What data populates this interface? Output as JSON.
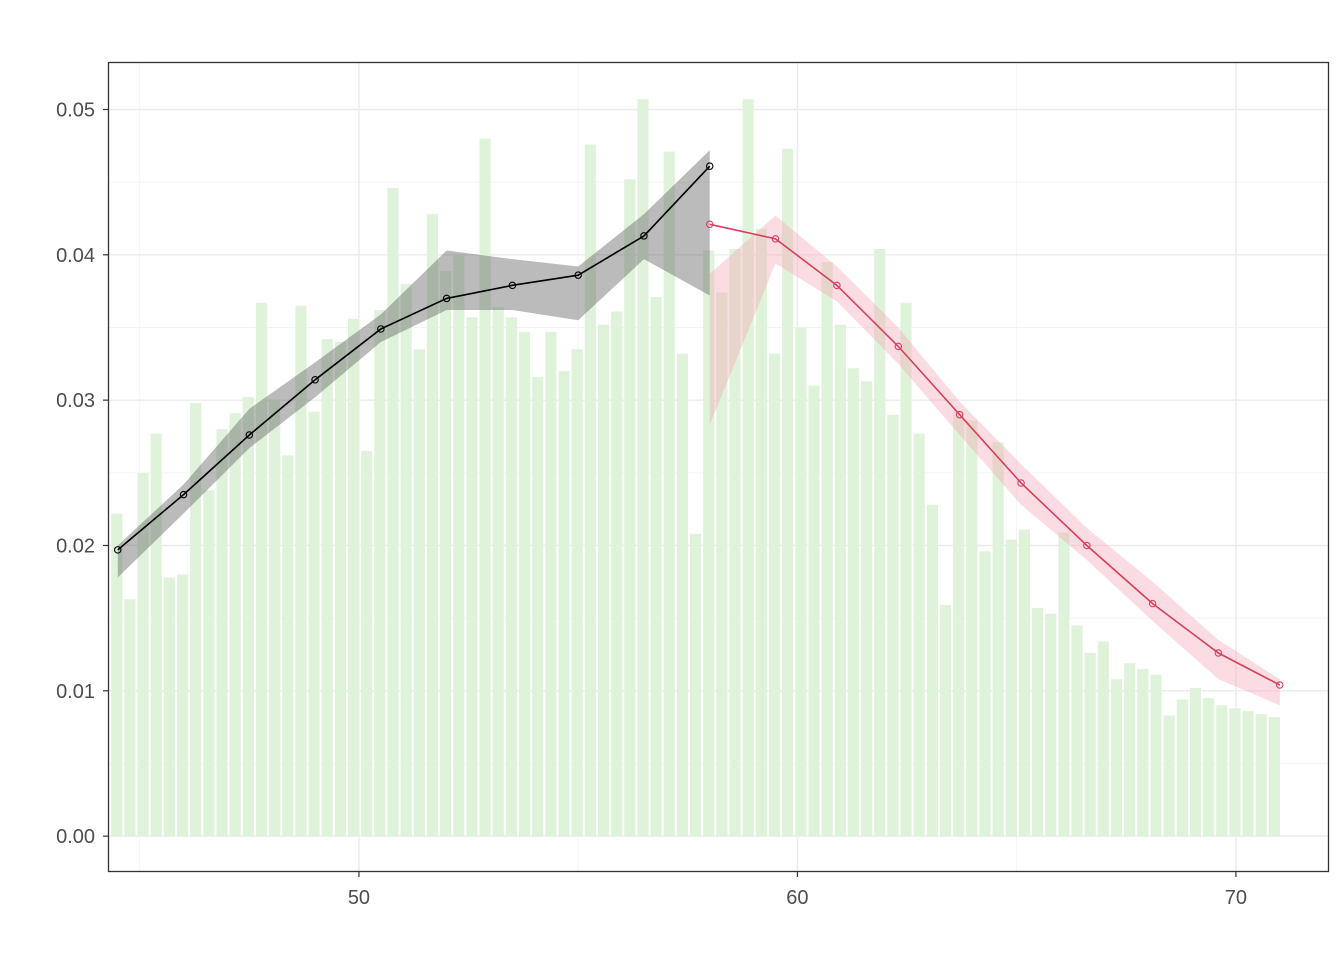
{
  "chart_data": {
    "type": "bar",
    "xlim": [
      44.3,
      72.1
    ],
    "ylim": [
      -0.0024,
      0.0532
    ],
    "x_ticks": [
      50,
      60,
      70
    ],
    "x_tick_labels": [
      "50",
      "60",
      "70"
    ],
    "y_ticks": [
      0.0,
      0.01,
      0.02,
      0.03,
      0.04,
      0.05
    ],
    "y_tick_labels": [
      "0.00",
      "0.01",
      "0.02",
      "0.03",
      "0.04",
      "0.05"
    ],
    "grid": true,
    "histogram": {
      "color": "#dff3da",
      "bar_width": 0.3,
      "x": [
        44.5,
        44.8,
        45.1,
        45.4,
        45.7,
        46.0,
        46.3,
        46.6,
        46.9,
        47.2,
        47.5,
        47.8,
        48.1,
        48.4,
        48.7,
        49.0,
        49.3,
        49.6,
        49.9,
        50.2,
        50.5,
        50.8,
        51.1,
        51.4,
        51.7,
        52.0,
        52.3,
        52.6,
        52.9,
        53.2,
        53.5,
        53.8,
        54.1,
        54.4,
        54.7,
        55.0,
        55.3,
        55.6,
        55.9,
        56.2,
        56.5,
        56.8,
        57.1,
        57.4,
        57.7,
        58.0,
        58.3,
        58.6,
        58.9,
        59.2,
        59.5,
        59.8,
        60.1,
        60.4,
        60.7,
        61.0,
        61.3,
        61.6,
        61.9,
        62.2,
        62.5,
        62.8,
        63.1,
        63.4,
        63.7,
        64.0,
        64.3,
        64.6,
        64.9,
        65.2,
        65.5,
        65.8,
        66.1,
        66.4,
        66.7,
        67.0,
        67.3,
        67.6,
        67.9,
        68.2,
        68.5,
        68.8,
        69.1,
        69.4,
        69.7,
        70.0,
        70.3,
        70.6,
        70.9
      ],
      "values": [
        0.0222,
        0.0163,
        0.025,
        0.0277,
        0.0178,
        0.018,
        0.0298,
        0.0238,
        0.028,
        0.0291,
        0.0302,
        0.0367,
        0.03,
        0.0262,
        0.0365,
        0.0292,
        0.0342,
        0.034,
        0.0356,
        0.0265,
        0.0362,
        0.0446,
        0.038,
        0.0335,
        0.0428,
        0.0389,
        0.04,
        0.0357,
        0.048,
        0.0364,
        0.0357,
        0.0347,
        0.0316,
        0.0347,
        0.032,
        0.0335,
        0.0476,
        0.0352,
        0.0361,
        0.0452,
        0.0507,
        0.0371,
        0.0471,
        0.0332,
        0.0208,
        0.0403,
        0.0374,
        0.0404,
        0.0507,
        0.0418,
        0.0332,
        0.0473,
        0.035,
        0.031,
        0.0395,
        0.0352,
        0.0322,
        0.0313,
        0.0404,
        0.029,
        0.0367,
        0.0277,
        0.0228,
        0.0159,
        0.0292,
        0.0286,
        0.0196,
        0.0271,
        0.0204,
        0.0211,
        0.0157,
        0.0153,
        0.0209,
        0.0145,
        0.0126,
        0.0134,
        0.0108,
        0.0119,
        0.0115,
        0.0111,
        0.0083,
        0.0094,
        0.0102,
        0.0095,
        0.009,
        0.0088,
        0.0086,
        0.0084,
        0.0082
      ]
    },
    "series": [
      {
        "color": "#000000",
        "band_color": "#555555",
        "x": [
          44.5,
          46.0,
          47.5,
          49.0,
          50.5,
          52.0,
          53.5,
          55.0,
          56.5,
          58.0
        ],
        "y": [
          0.0197,
          0.0235,
          0.0276,
          0.0314,
          0.0349,
          0.037,
          0.0379,
          0.0386,
          0.0413,
          0.0461
        ],
        "lower": [
          0.0178,
          0.0222,
          0.0267,
          0.0302,
          0.034,
          0.0362,
          0.0362,
          0.0355,
          0.0397,
          0.0372
        ],
        "upper": [
          0.02,
          0.0242,
          0.0294,
          0.0326,
          0.0359,
          0.0403,
          0.0397,
          0.0392,
          0.0428,
          0.0472
        ]
      },
      {
        "color": "#d6405e",
        "band_color": "#f2a7b7",
        "x": [
          58.0,
          59.5,
          60.9,
          62.3,
          63.7,
          65.1,
          66.6,
          68.1,
          69.6,
          71.0
        ],
        "y": [
          0.0421,
          0.0411,
          0.0379,
          0.0337,
          0.029,
          0.0243,
          0.02,
          0.016,
          0.0126,
          0.0104
        ],
        "lower": [
          0.0283,
          0.0394,
          0.0368,
          0.0325,
          0.0276,
          0.0228,
          0.019,
          0.0148,
          0.0108,
          0.009
        ],
        "upper": [
          0.0387,
          0.0427,
          0.0392,
          0.035,
          0.0299,
          0.0256,
          0.0212,
          0.0175,
          0.0135,
          0.0108
        ]
      }
    ]
  }
}
